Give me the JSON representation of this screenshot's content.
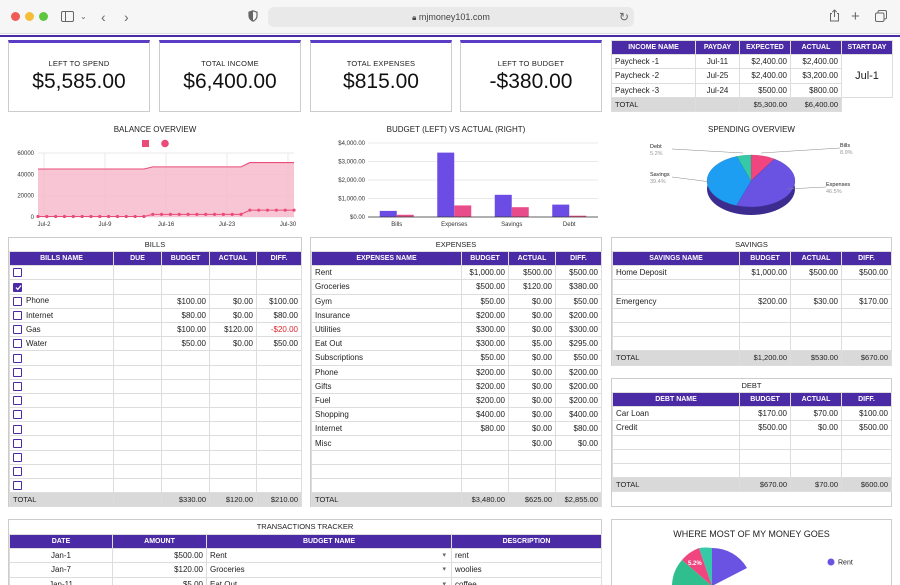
{
  "browser": {
    "url": "mjmoney101.com"
  },
  "summary": [
    {
      "label": "LEFT TO SPEND",
      "value": "$5,585.00"
    },
    {
      "label": "TOTAL INCOME",
      "value": "$6,400.00"
    },
    {
      "label": "TOTAL EXPENSES",
      "value": "$815.00"
    },
    {
      "label": "LEFT TO BUDGET",
      "value": "-$380.00"
    }
  ],
  "income": {
    "headers": [
      "INCOME NAME",
      "PAYDAY",
      "EXPECTED",
      "ACTUAL",
      "START DAY"
    ],
    "rows": [
      [
        "Paycheck -1",
        "Jul-11",
        "$2,400.00",
        "$2,400.00"
      ],
      [
        "Paycheck -2",
        "Jul-25",
        "$2,400.00",
        "$3,200.00"
      ],
      [
        "Paycheck -3",
        "Jul-24",
        "$500.00",
        "$800.00"
      ]
    ],
    "start_day": "Jul-1",
    "total": [
      "TOTAL",
      "",
      "$5,300.00",
      "$6,400.00"
    ]
  },
  "charts": {
    "balance_title": "BALANCE OVERVIEW",
    "budget_title": "BUDGET (LEFT) VS ACTUAL (RIGHT)",
    "spending_title": "SPENDING OVERVIEW",
    "where_title": "WHERE MOST OF MY MONEY GOES",
    "where_legend": "Rent",
    "where_slice_label": "5.2%"
  },
  "chart_data": [
    {
      "type": "area",
      "title": "BALANCE OVERVIEW",
      "x_ticks": [
        "Jul-2",
        "Jul-9",
        "Jul-16",
        "Jul-23",
        "Jul-30"
      ],
      "y_ticks": [
        "0",
        "20000",
        "40000",
        "60000"
      ],
      "ylim": [
        0,
        60000
      ],
      "series": [
        {
          "values": [
            45000,
            45000,
            45000,
            45000,
            45000,
            45000,
            45000,
            45000,
            45000,
            45000,
            45000,
            45000,
            45000,
            47000,
            47000,
            47000,
            47000,
            47000,
            47000,
            47000,
            47000,
            47000,
            47000,
            47000,
            51000,
            51000,
            51000,
            51000,
            51000,
            51000
          ]
        },
        {
          "values": [
            500,
            500,
            500,
            500,
            500,
            500,
            500,
            500,
            500,
            500,
            500,
            500,
            500,
            2500,
            2500,
            2500,
            2500,
            2500,
            2500,
            2500,
            2500,
            2500,
            2500,
            2500,
            6400,
            6400,
            6400,
            6400,
            6400,
            6400
          ]
        }
      ]
    },
    {
      "type": "bar",
      "title": "BUDGET (LEFT) VS ACTUAL (RIGHT)",
      "categories": [
        "Bills",
        "Expenses",
        "Savings",
        "Debt"
      ],
      "y_ticks": [
        "$0.00",
        "$1,000.00",
        "$2,000.00",
        "$3,000.00",
        "$4,000.00"
      ],
      "ylim": [
        0,
        4000
      ],
      "series": [
        {
          "values": [
            330,
            3480,
            1200,
            670
          ]
        },
        {
          "values": [
            120,
            625,
            530,
            70
          ]
        }
      ]
    },
    {
      "type": "pie",
      "title": "SPENDING OVERVIEW",
      "labels": [
        "Bills",
        "Expenses",
        "Savings",
        "Debt"
      ],
      "values": [
        8.9,
        46.5,
        39.4,
        5.2
      ],
      "value_labels": [
        "8.9%",
        "46.5%",
        "39.4%",
        "5.2%"
      ]
    }
  ],
  "colors": {
    "accent": "#4b2aa5",
    "bar_budget": "#6b4de6",
    "bar_actual": "#e94c8a",
    "negative": "#d9272e",
    "pie_bills": "#f0457f",
    "pie_expenses": "#6a52e3",
    "pie_savings": "#1e9ef2",
    "pie_debt": "#36c9a8"
  },
  "bills": {
    "title": "BILLS",
    "headers": [
      "BILLS NAME",
      "DUE",
      "BUDGET",
      "ACTUAL",
      "DIFF."
    ],
    "rows": [
      {
        "checked": false,
        "cells": [
          "",
          "",
          "",
          "",
          ""
        ]
      },
      {
        "checked": true,
        "cells": [
          "",
          "",
          "",
          "",
          ""
        ]
      },
      {
        "checked": false,
        "cells": [
          "Phone",
          "",
          "$100.00",
          "$0.00",
          "$100.00"
        ]
      },
      {
        "checked": false,
        "cells": [
          "Internet",
          "",
          "$80.00",
          "$0.00",
          "$80.00"
        ]
      },
      {
        "checked": false,
        "cells": [
          "Gas",
          "",
          "$100.00",
          "$120.00",
          "-$20.00"
        ]
      },
      {
        "checked": false,
        "cells": [
          "Water",
          "",
          "$50.00",
          "$0.00",
          "$50.00"
        ]
      },
      {
        "checked": false,
        "cells": [
          "",
          "",
          "",
          "",
          ""
        ]
      },
      {
        "checked": false,
        "cells": [
          "",
          "",
          "",
          "",
          ""
        ]
      },
      {
        "checked": false,
        "cells": [
          "",
          "",
          "",
          "",
          ""
        ]
      },
      {
        "checked": false,
        "cells": [
          "",
          "",
          "",
          "",
          ""
        ]
      },
      {
        "checked": false,
        "cells": [
          "",
          "",
          "",
          "",
          ""
        ]
      },
      {
        "checked": false,
        "cells": [
          "",
          "",
          "",
          "",
          ""
        ]
      },
      {
        "checked": false,
        "cells": [
          "",
          "",
          "",
          "",
          ""
        ]
      },
      {
        "checked": false,
        "cells": [
          "",
          "",
          "",
          "",
          ""
        ]
      },
      {
        "checked": false,
        "cells": [
          "",
          "",
          "",
          "",
          ""
        ]
      },
      {
        "checked": false,
        "cells": [
          "",
          "",
          "",
          "",
          ""
        ]
      }
    ],
    "total": [
      "TOTAL",
      "",
      "$330.00",
      "$120.00",
      "$210.00"
    ]
  },
  "expenses": {
    "title": "EXPENSES",
    "headers": [
      "EXPENSES NAME",
      "BUDGET",
      "ACTUAL",
      "DIFF."
    ],
    "rows": [
      [
        "Rent",
        "$1,000.00",
        "$500.00",
        "$500.00"
      ],
      [
        "Groceries",
        "$500.00",
        "$120.00",
        "$380.00"
      ],
      [
        "Gym",
        "$50.00",
        "$0.00",
        "$50.00"
      ],
      [
        "Insurance",
        "$200.00",
        "$0.00",
        "$200.00"
      ],
      [
        "Utilities",
        "$300.00",
        "$0.00",
        "$300.00"
      ],
      [
        "Eat Out",
        "$300.00",
        "$5.00",
        "$295.00"
      ],
      [
        "Subscriptions",
        "$50.00",
        "$0.00",
        "$50.00"
      ],
      [
        "Phone",
        "$200.00",
        "$0.00",
        "$200.00"
      ],
      [
        "Gifts",
        "$200.00",
        "$0.00",
        "$200.00"
      ],
      [
        "Fuel",
        "$200.00",
        "$0.00",
        "$200.00"
      ],
      [
        "Shopping",
        "$400.00",
        "$0.00",
        "$400.00"
      ],
      [
        "Internet",
        "$80.00",
        "$0.00",
        "$80.00"
      ],
      [
        "Misc",
        "",
        "$0.00",
        "$0.00"
      ],
      [
        "",
        "",
        "",
        ""
      ],
      [
        "",
        "",
        "",
        ""
      ],
      [
        "",
        "",
        "",
        ""
      ]
    ],
    "total": [
      "TOTAL",
      "$3,480.00",
      "$625.00",
      "$2,855.00"
    ]
  },
  "savings": {
    "title": "SAVINGS",
    "headers": [
      "SAVINGS NAME",
      "BUDGET",
      "ACTUAL",
      "DIFF."
    ],
    "rows": [
      [
        "Home Deposit",
        "$1,000.00",
        "$500.00",
        "$500.00"
      ],
      [
        "",
        "",
        "",
        ""
      ],
      [
        "Emergency",
        "$200.00",
        "$30.00",
        "$170.00"
      ],
      [
        "",
        "",
        "",
        ""
      ],
      [
        "",
        "",
        "",
        ""
      ],
      [
        "",
        "",
        "",
        ""
      ]
    ],
    "total": [
      "TOTAL",
      "$1,200.00",
      "$530.00",
      "$670.00"
    ]
  },
  "debt": {
    "title": "DEBT",
    "headers": [
      "DEBT NAME",
      "BUDGET",
      "ACTUAL",
      "DIFF."
    ],
    "rows": [
      [
        "Car Loan",
        "$170.00",
        "$70.00",
        "$100.00"
      ],
      [
        "Credit",
        "$500.00",
        "$0.00",
        "$500.00"
      ],
      [
        "",
        "",
        "",
        ""
      ],
      [
        "",
        "",
        "",
        ""
      ],
      [
        "",
        "",
        "",
        ""
      ]
    ],
    "total": [
      "TOTAL",
      "$670.00",
      "$70.00",
      "$600.00"
    ]
  },
  "transactions": {
    "title": "TRANSACTIONS TRACKER",
    "headers": [
      "DATE",
      "AMOUNT",
      "BUDGET NAME",
      "DESCRIPTION"
    ],
    "rows": [
      [
        "Jan-1",
        "$500.00",
        "Rent",
        "rent"
      ],
      [
        "Jan-7",
        "$120.00",
        "Groceries",
        "woolies"
      ],
      [
        "Jan-11",
        "$5.00",
        "Eat Out",
        "coffee"
      ]
    ]
  }
}
